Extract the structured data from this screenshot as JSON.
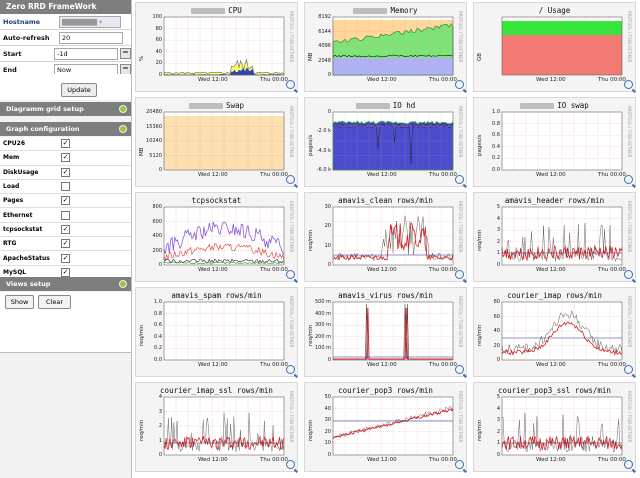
{
  "sidebar": {
    "title": "Zero RRD FrameWork",
    "form": {
      "hostname_label": "Hostname",
      "autorefresh_label": "Auto-refresh",
      "autorefresh_value": "20",
      "start_label": "Start",
      "start_value": "-1d",
      "end_label": "End",
      "end_value": "Now",
      "update_button": "Update"
    },
    "sections": {
      "grid_setup": "Diagramm grid setup",
      "graph_config": "Graph configuration",
      "views_setup": "Views setup"
    },
    "graph_items": [
      {
        "label": "CPU26",
        "checked": true
      },
      {
        "label": "Mem",
        "checked": true
      },
      {
        "label": "DiskUsage",
        "checked": true
      },
      {
        "label": "Load",
        "checked": false
      },
      {
        "label": "Pages",
        "checked": true
      },
      {
        "label": "Ethernet",
        "checked": false
      },
      {
        "label": "tcpsockstat",
        "checked": true
      },
      {
        "label": "RTG",
        "checked": true
      },
      {
        "label": "ApacheStatus",
        "checked": true
      },
      {
        "label": "MySQL",
        "checked": true
      }
    ],
    "views_buttons": {
      "show": "Show",
      "clear": "Clear"
    },
    "colors": {
      "header": "#7e7e7e",
      "toggle": "#9cc63b"
    }
  },
  "panels": [
    {
      "title": "CPU",
      "ylabel": "%",
      "yticks": [
        "100",
        "80",
        "60",
        "40",
        "20",
        "0"
      ],
      "kind": "cpu"
    },
    {
      "title": "Memory",
      "ylabel": "MB",
      "yticks": [
        "8192",
        "6144",
        "4096",
        "2048",
        "0"
      ],
      "kind": "memory"
    },
    {
      "title": "/ Usage",
      "ylabel": "GB",
      "yticks": [],
      "kind": "usage"
    },
    {
      "title": "Swap",
      "ylabel": "MB",
      "yticks": [
        "20480",
        "15360",
        "10240",
        "5120",
        "0"
      ],
      "kind": "swap"
    },
    {
      "title": "IO hd",
      "ylabel": "pages/s",
      "yticks": [
        "0",
        "-2.0 k",
        "-4.0 k",
        "-6.0 k"
      ],
      "kind": "iohd"
    },
    {
      "title": "IO swap",
      "ylabel": "pages/s",
      "yticks": [
        "1.0",
        "0.8",
        "0.6",
        "0.4",
        "0.2",
        "0.0"
      ],
      "kind": "empty"
    },
    {
      "title": "tcpsockstat",
      "ylabel": "",
      "yticks": [
        "800",
        "600",
        "400",
        "200",
        "0"
      ],
      "kind": "tcp"
    },
    {
      "title": "amavis_clean rows/min",
      "ylabel": "req/min",
      "yticks": [
        "30",
        "20",
        "10",
        "0"
      ],
      "kind": "clean"
    },
    {
      "title": "amavis_header rows/min",
      "ylabel": "req/min",
      "yticks": [
        "5",
        "4",
        "3",
        "2",
        "1",
        "0"
      ],
      "kind": "noise"
    },
    {
      "title": "amavis_spam rows/min",
      "ylabel": "req/min",
      "yticks": [
        "1.0",
        "0.8",
        "0.6",
        "0.4",
        "0.2",
        "0.0"
      ],
      "kind": "empty"
    },
    {
      "title": "amavis_virus rows/min",
      "ylabel": "req/min",
      "yticks": [
        "500 m",
        "400 m",
        "300 m",
        "200 m",
        "100 m",
        "0"
      ],
      "kind": "virus"
    },
    {
      "title": "courier_imap rows/min",
      "ylabel": "req/min",
      "yticks": [
        "80",
        "60",
        "40",
        "20",
        "0"
      ],
      "kind": "hump"
    },
    {
      "title": "courier_imap_ssl rows/min",
      "ylabel": "req/min",
      "yticks": [
        "4",
        "3",
        "2",
        "1",
        "0"
      ],
      "kind": "noise"
    },
    {
      "title": "courier_pop3 rows/min",
      "ylabel": "req/min",
      "yticks": [
        "50",
        "40",
        "30",
        "20",
        "10",
        "0"
      ],
      "kind": "pop3"
    },
    {
      "title": "courier_pop3_ssl rows/min",
      "ylabel": "req/min",
      "yticks": [
        "5",
        "4",
        "3",
        "2",
        "1",
        "0"
      ],
      "kind": "noise"
    }
  ],
  "xticks": [
    "Wed 12:00",
    "Thu 00:00"
  ],
  "side_text": "RRDTOOL / TOBI OETIKER"
}
